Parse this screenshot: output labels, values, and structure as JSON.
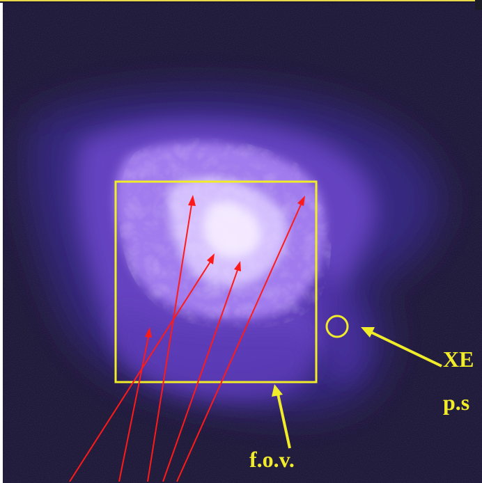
{
  "annotations": {
    "fov_label": "f.o.v.",
    "xe_label": "XE",
    "ps_label": "p.s"
  },
  "colors": {
    "background": "#1a1530",
    "nebula_core": "#f4eaff",
    "nebula_mid": "#b48cff",
    "nebula_outer": "#5a34b8",
    "annotation": "#f0ec2a",
    "arrows": "#ff1a1a"
  }
}
